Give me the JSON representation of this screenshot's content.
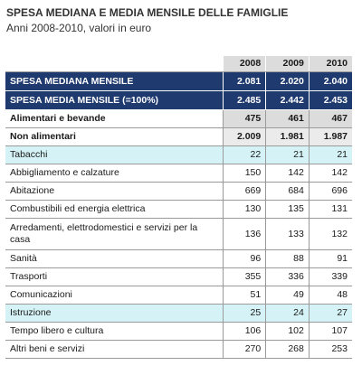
{
  "title": "SPESA MEDIANA E MEDIA MENSILE DELLE FAMIGLIE",
  "subtitle": "Anni 2008-2010, valori in euro",
  "table": {
    "years": [
      "2008",
      "2009",
      "2010"
    ],
    "rows": [
      {
        "label": "SPESA MEDIANA MENSILE",
        "values": [
          "2.081",
          "2.020",
          "2.040"
        ]
      },
      {
        "label": "SPESA MEDIA MENSILE (=100%)",
        "values": [
          "2.485",
          "2.442",
          "2.453"
        ]
      },
      {
        "label": "Alimentari e bevande",
        "values": [
          "475",
          "461",
          "467"
        ]
      },
      {
        "label": "Non alimentari",
        "values": [
          "2.009",
          "1.981",
          "1.987"
        ]
      },
      {
        "label": "Tabacchi",
        "values": [
          "22",
          "21",
          "21"
        ]
      },
      {
        "label": "Abbigliamento e calzature",
        "values": [
          "150",
          "142",
          "142"
        ]
      },
      {
        "label": "Abitazione",
        "values": [
          "669",
          "684",
          "696"
        ]
      },
      {
        "label": "Combustibili ed energia elettrica",
        "values": [
          "130",
          "135",
          "131"
        ]
      },
      {
        "label": "Arredamenti, elettrodomestici e servizi per la casa",
        "values": [
          "136",
          "133",
          "132"
        ]
      },
      {
        "label": "Sanità",
        "values": [
          "96",
          "88",
          "91"
        ]
      },
      {
        "label": "Trasporti",
        "values": [
          "355",
          "336",
          "339"
        ]
      },
      {
        "label": "Comunicazioni",
        "values": [
          "51",
          "49",
          "48"
        ]
      },
      {
        "label": "Istruzione",
        "values": [
          "25",
          "24",
          "27"
        ]
      },
      {
        "label": "Tempo libero e cultura",
        "values": [
          "106",
          "102",
          "107"
        ]
      },
      {
        "label": "Altri beni e servizi",
        "values": [
          "270",
          "268",
          "253"
        ]
      }
    ]
  },
  "colors": {
    "header_navy": "#1f3a6e",
    "highlight_cyan": "#d5f3f6",
    "gray_fill": "#dcdcdc"
  }
}
